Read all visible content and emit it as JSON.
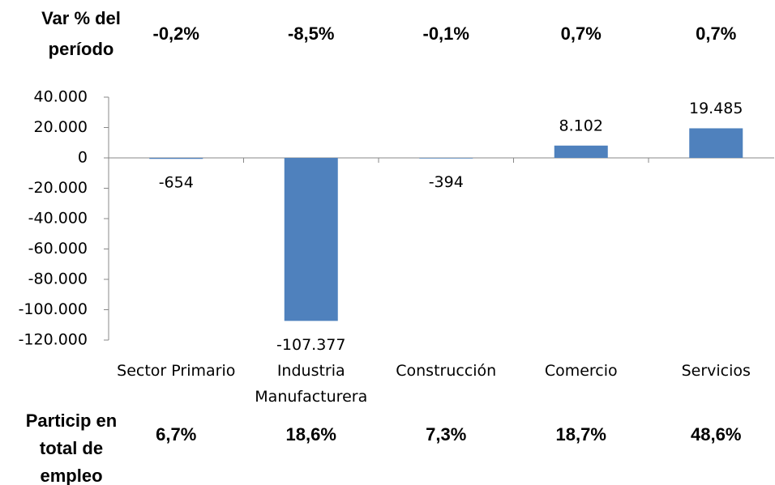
{
  "chart_data": {
    "type": "bar",
    "categories": [
      "Sector Primario",
      "Industria Manufacturera",
      "Construcción",
      "Comercio",
      "Servicios"
    ],
    "values": [
      -654,
      -107377,
      -394,
      8102,
      19485
    ],
    "value_labels": [
      "-654",
      "-107.377",
      "-394",
      "8.102",
      "19.485"
    ],
    "color": "#4f81bd",
    "ylim": [
      -120000,
      40000
    ],
    "yticks": [
      {
        "value": 40000,
        "label": "40.000"
      },
      {
        "value": 20000,
        "label": "20.000"
      },
      0,
      {
        "value": -20000,
        "label": "-20.000"
      },
      {
        "value": -40000,
        "label": "-40.000"
      },
      {
        "value": -60000,
        "label": "-60.000"
      },
      {
        "value": -80000,
        "label": "-80.000"
      },
      {
        "value": -100000,
        "label": "-100.000"
      },
      {
        "value": -120000,
        "label": "-120.000"
      }
    ],
    "grid": false,
    "top_row": {
      "label": "Var % del período",
      "values": [
        "-0,2%",
        "-8,5%",
        "-0,1%",
        "0,7%",
        "0,7%"
      ]
    },
    "bottom_row": {
      "label": "Particip en total de empleo",
      "values": [
        "6,7%",
        "18,6%",
        "7,3%",
        "18,7%",
        "48,6%"
      ]
    }
  }
}
